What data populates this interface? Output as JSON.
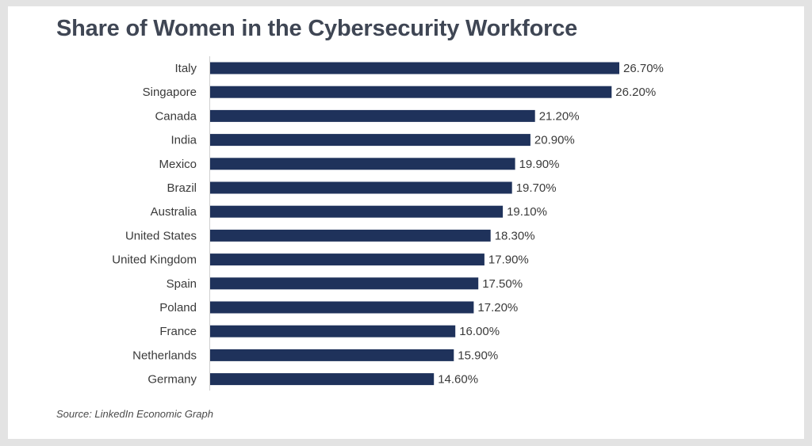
{
  "chart_data": {
    "type": "bar",
    "orientation": "horizontal",
    "title": "Share of Women in the Cybersecurity Workforce",
    "categories": [
      "Italy",
      "Singapore",
      "Canada",
      "India",
      "Mexico",
      "Brazil",
      "Australia",
      "United States",
      "United Kingdom",
      "Spain",
      "Poland",
      "France",
      "Netherlands",
      "Germany"
    ],
    "values": [
      26.7,
      26.2,
      21.2,
      20.9,
      19.9,
      19.7,
      19.1,
      18.3,
      17.9,
      17.5,
      17.2,
      16.0,
      15.9,
      14.6
    ],
    "value_labels": [
      "26.70%",
      "26.20%",
      "21.20%",
      "20.90%",
      "19.90%",
      "19.70%",
      "19.10%",
      "18.30%",
      "17.90%",
      "17.50%",
      "17.20%",
      "16.00%",
      "15.90%",
      "14.60%"
    ],
    "xlim": [
      0,
      26.7
    ],
    "grid": false,
    "bar_color": "#1f325b"
  },
  "source": "Source: LinkedIn Economic Graph"
}
